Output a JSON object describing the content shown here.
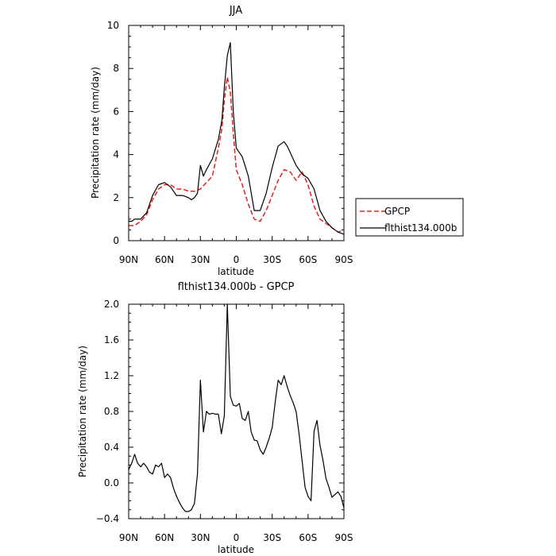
{
  "chart_data": [
    {
      "type": "line",
      "title": "JJA",
      "xlabel": "latitude",
      "ylabel": "Precipitation rate (mm/day)",
      "xlim": [
        90,
        -90
      ],
      "ylim": [
        0,
        10
      ],
      "xticks": [
        {
          "value": 90,
          "label": "90N"
        },
        {
          "value": 60,
          "label": "60N"
        },
        {
          "value": 30,
          "label": "30N"
        },
        {
          "value": 0,
          "label": "0"
        },
        {
          "value": -30,
          "label": "30S"
        },
        {
          "value": -60,
          "label": "60S"
        },
        {
          "value": -90,
          "label": "90S"
        }
      ],
      "yticks": [
        0,
        2,
        4,
        6,
        8,
        10
      ],
      "legend_position": "right",
      "series": [
        {
          "name": "GPCP",
          "color": "#e8201e",
          "dash": true,
          "x": [
            90,
            85,
            80,
            75,
            70,
            65,
            60,
            55,
            50,
            45,
            40,
            35,
            30,
            25,
            20,
            15,
            12,
            10,
            7.5,
            5,
            2.5,
            0,
            -5,
            -10,
            -15,
            -20,
            -25,
            -30,
            -35,
            -40,
            -45,
            -50,
            -55,
            -60,
            -65,
            -70,
            -75,
            -80,
            -85,
            -90
          ],
          "y": [
            0.7,
            0.7,
            0.9,
            1.2,
            1.9,
            2.4,
            2.6,
            2.6,
            2.4,
            2.4,
            2.3,
            2.3,
            2.4,
            2.7,
            3.0,
            4.3,
            5.2,
            6.5,
            7.6,
            6.9,
            5.0,
            3.3,
            2.6,
            1.7,
            1.0,
            0.9,
            1.4,
            2.1,
            2.8,
            3.3,
            3.2,
            2.8,
            3.2,
            2.6,
            1.6,
            1.0,
            0.8,
            0.6,
            0.4,
            0.5
          ]
        },
        {
          "name": "flthist134.000b",
          "color": "#000000",
          "dash": false,
          "x": [
            90,
            87.5,
            85,
            80,
            75,
            70,
            65,
            60,
            55,
            50,
            45,
            40,
            37.5,
            35,
            32.5,
            30,
            27.5,
            25,
            20,
            15,
            12,
            10,
            7.5,
            5,
            2.5,
            0,
            -5,
            -10,
            -15,
            -20,
            -25,
            -30,
            -35,
            -40,
            -42.5,
            -45,
            -50,
            -55,
            -60,
            -65,
            -70,
            -75,
            -80,
            -85,
            -90
          ],
          "y": [
            0.9,
            0.9,
            1.0,
            1.0,
            1.3,
            2.1,
            2.6,
            2.7,
            2.5,
            2.1,
            2.1,
            2.0,
            1.9,
            2.0,
            2.2,
            3.5,
            3.0,
            3.3,
            3.8,
            4.7,
            5.6,
            7.1,
            8.6,
            9.2,
            6.0,
            4.3,
            3.9,
            3.0,
            1.4,
            1.4,
            2.2,
            3.4,
            4.4,
            4.6,
            4.4,
            4.1,
            3.5,
            3.1,
            2.9,
            2.4,
            1.4,
            0.9,
            0.6,
            0.4,
            0.3
          ]
        }
      ]
    },
    {
      "type": "line",
      "title": "flthist134.000b - GPCP",
      "xlabel": "latitude",
      "ylabel": "Precipitation rate (mm/day)",
      "xlim": [
        90,
        -90
      ],
      "ylim": [
        -0.4,
        2.0
      ],
      "xticks": [
        {
          "value": 90,
          "label": "90N"
        },
        {
          "value": 60,
          "label": "60N"
        },
        {
          "value": 30,
          "label": "30N"
        },
        {
          "value": 0,
          "label": "0"
        },
        {
          "value": -30,
          "label": "30S"
        },
        {
          "value": -60,
          "label": "60S"
        },
        {
          "value": -90,
          "label": "90S"
        }
      ],
      "yticks": [
        {
          "value": -0.4,
          "label": "−0.4"
        },
        {
          "value": 0.0,
          "label": "0.0"
        },
        {
          "value": 0.4,
          "label": "0.4"
        },
        {
          "value": 0.8,
          "label": "0.8"
        },
        {
          "value": 1.2,
          "label": "1.2"
        },
        {
          "value": 1.6,
          "label": "1.6"
        },
        {
          "value": 2.0,
          "label": "2.0"
        }
      ],
      "series": [
        {
          "name": "",
          "color": "#000000",
          "dash": false,
          "x": [
            90,
            87.5,
            85,
            82.5,
            80,
            77.5,
            75,
            72.5,
            70,
            67.5,
            65,
            62.5,
            60,
            57.5,
            55,
            52.5,
            50,
            47.5,
            45,
            42.5,
            40,
            37.5,
            35,
            32.5,
            30,
            27.5,
            25,
            22.5,
            20,
            17.5,
            15,
            12.5,
            10,
            7.5,
            5,
            2.5,
            0,
            -2.5,
            -5,
            -7.5,
            -10,
            -12.5,
            -15,
            -17.5,
            -20,
            -22.5,
            -25,
            -27.5,
            -30,
            -32.5,
            -35,
            -37.5,
            -40,
            -42.5,
            -45,
            -47.5,
            -50,
            -52.5,
            -55,
            -57.5,
            -60,
            -62.5,
            -65,
            -67.5,
            -70,
            -72.5,
            -75,
            -77.5,
            -80,
            -82.5,
            -85,
            -87.5,
            -90
          ],
          "y": [
            0.15,
            0.22,
            0.32,
            0.22,
            0.18,
            0.22,
            0.18,
            0.12,
            0.1,
            0.2,
            0.18,
            0.22,
            0.06,
            0.1,
            0.06,
            -0.06,
            -0.15,
            -0.22,
            -0.28,
            -0.32,
            -0.32,
            -0.3,
            -0.23,
            0.1,
            1.15,
            0.57,
            0.8,
            0.77,
            0.78,
            0.77,
            0.77,
            0.55,
            0.75,
            2.0,
            0.97,
            0.87,
            0.86,
            0.89,
            0.72,
            0.7,
            0.8,
            0.57,
            0.48,
            0.47,
            0.37,
            0.32,
            0.4,
            0.5,
            0.62,
            0.9,
            1.15,
            1.1,
            1.2,
            1.08,
            0.98,
            0.9,
            0.8,
            0.55,
            0.25,
            -0.05,
            -0.15,
            -0.2,
            0.58,
            0.7,
            0.42,
            0.25,
            0.05,
            -0.05,
            -0.16,
            -0.13,
            -0.1,
            -0.15,
            -0.28
          ]
        }
      ]
    }
  ]
}
